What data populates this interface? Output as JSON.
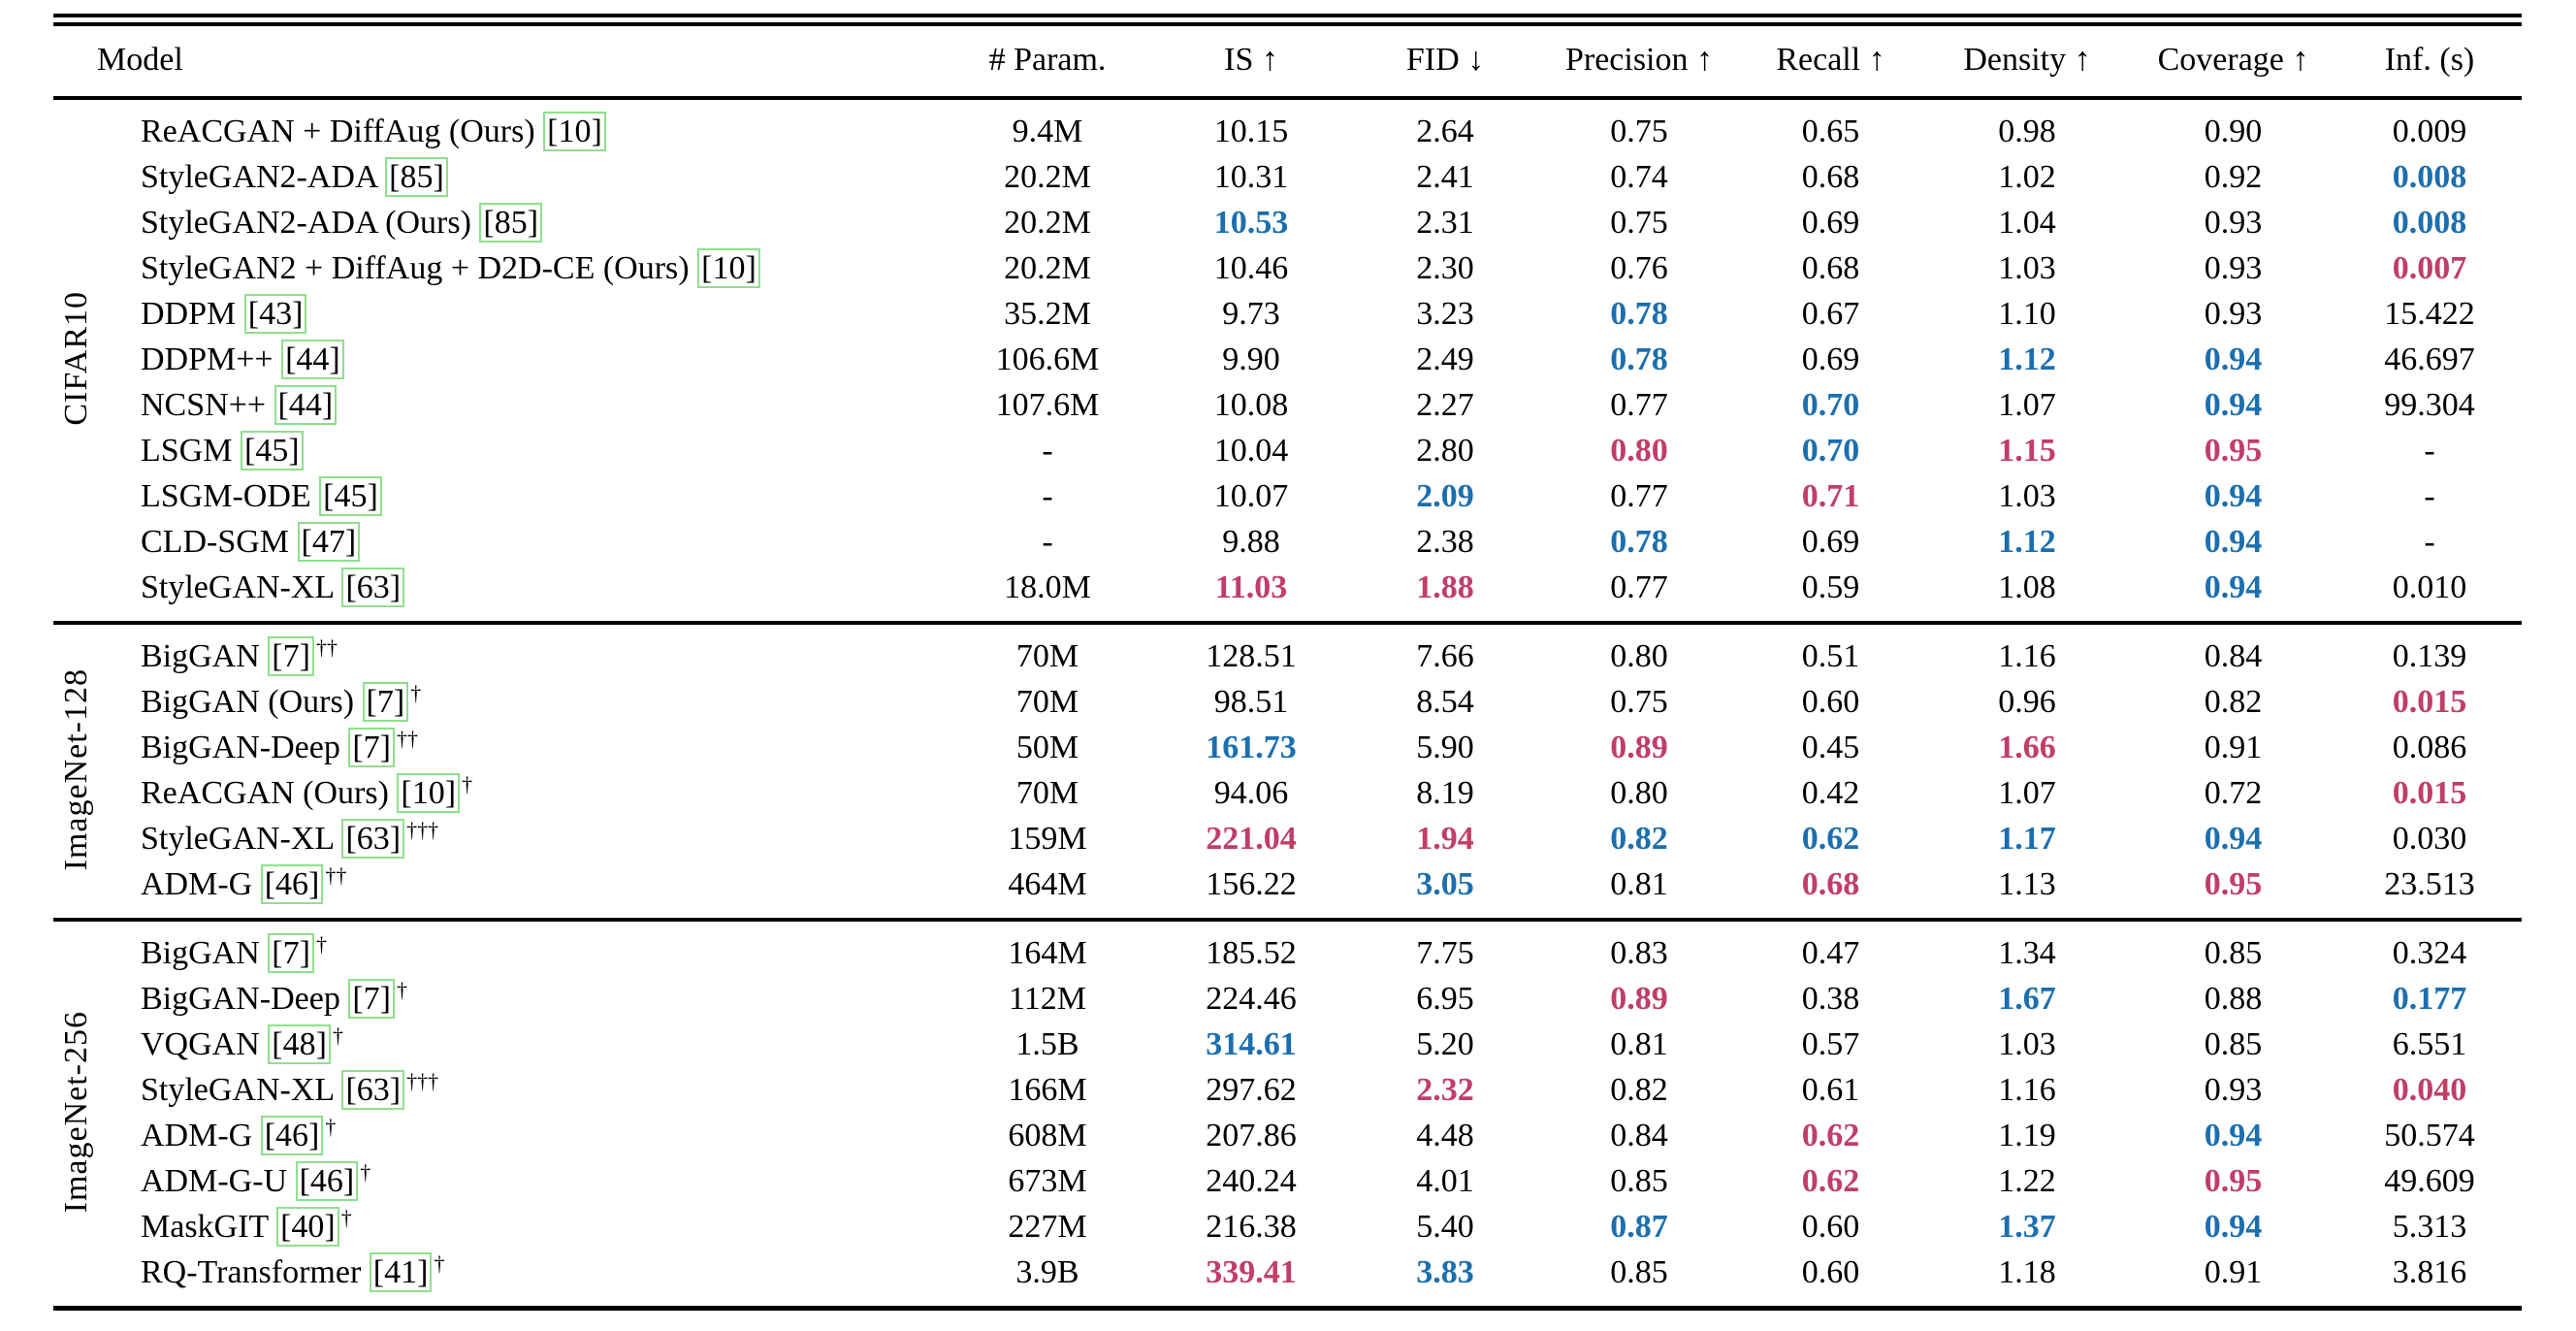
{
  "colors": {
    "best_red": "#c13e66",
    "runner_up_blue": "#1c6fae",
    "citation_box_green": "#8ee08e",
    "text": "#000000",
    "background": "#ffffff"
  },
  "header": {
    "columns": [
      "Model",
      "# Param.",
      "IS ↑",
      "FID ↓",
      "Precision ↑",
      "Recall ↑",
      "Density ↑",
      "Coverage ↑",
      "Inf. (s)"
    ]
  },
  "sections": [
    {
      "label": "CIFAR10",
      "rows": [
        {
          "name": "ReACGAN + DiffAug (Ours)",
          "cite": "[10]",
          "sup": "",
          "cells": [
            {
              "t": "9.4M"
            },
            {
              "t": "10.15"
            },
            {
              "t": "2.64"
            },
            {
              "t": "0.75"
            },
            {
              "t": "0.65"
            },
            {
              "t": "0.98"
            },
            {
              "t": "0.90"
            },
            {
              "t": "0.009"
            }
          ]
        },
        {
          "name": "StyleGAN2-ADA",
          "cite": "[85]",
          "sup": "",
          "cells": [
            {
              "t": "20.2M"
            },
            {
              "t": "10.31"
            },
            {
              "t": "2.41"
            },
            {
              "t": "0.74"
            },
            {
              "t": "0.68"
            },
            {
              "t": "1.02"
            },
            {
              "t": "0.92"
            },
            {
              "t": "0.008",
              "hl": "blue"
            }
          ]
        },
        {
          "name": "StyleGAN2-ADA (Ours)",
          "cite": "[85]",
          "sup": "",
          "cells": [
            {
              "t": "20.2M"
            },
            {
              "t": "10.53",
              "hl": "blue"
            },
            {
              "t": "2.31"
            },
            {
              "t": "0.75"
            },
            {
              "t": "0.69"
            },
            {
              "t": "1.04"
            },
            {
              "t": "0.93"
            },
            {
              "t": "0.008",
              "hl": "blue"
            }
          ]
        },
        {
          "name": "StyleGAN2 + DiffAug + D2D-CE (Ours)",
          "cite": "[10]",
          "sup": "",
          "cells": [
            {
              "t": "20.2M"
            },
            {
              "t": "10.46"
            },
            {
              "t": "2.30"
            },
            {
              "t": "0.76"
            },
            {
              "t": "0.68"
            },
            {
              "t": "1.03"
            },
            {
              "t": "0.93"
            },
            {
              "t": "0.007",
              "hl": "red"
            }
          ]
        },
        {
          "name": "DDPM",
          "cite": "[43]",
          "sup": "",
          "cells": [
            {
              "t": "35.2M"
            },
            {
              "t": "9.73"
            },
            {
              "t": "3.23"
            },
            {
              "t": "0.78",
              "hl": "blue"
            },
            {
              "t": "0.67"
            },
            {
              "t": "1.10"
            },
            {
              "t": "0.93"
            },
            {
              "t": "15.422"
            }
          ]
        },
        {
          "name": "DDPM++",
          "cite": "[44]",
          "sup": "",
          "cells": [
            {
              "t": "106.6M"
            },
            {
              "t": "9.90"
            },
            {
              "t": "2.49"
            },
            {
              "t": "0.78",
              "hl": "blue"
            },
            {
              "t": "0.69"
            },
            {
              "t": "1.12",
              "hl": "blue"
            },
            {
              "t": "0.94",
              "hl": "blue"
            },
            {
              "t": "46.697"
            }
          ]
        },
        {
          "name": "NCSN++",
          "cite": "[44]",
          "sup": "",
          "cells": [
            {
              "t": "107.6M"
            },
            {
              "t": "10.08"
            },
            {
              "t": "2.27"
            },
            {
              "t": "0.77"
            },
            {
              "t": "0.70",
              "hl": "blue"
            },
            {
              "t": "1.07"
            },
            {
              "t": "0.94",
              "hl": "blue"
            },
            {
              "t": "99.304"
            }
          ]
        },
        {
          "name": "LSGM",
          "cite": "[45]",
          "sup": "",
          "cells": [
            {
              "t": "-"
            },
            {
              "t": "10.04"
            },
            {
              "t": "2.80"
            },
            {
              "t": "0.80",
              "hl": "red"
            },
            {
              "t": "0.70",
              "hl": "blue"
            },
            {
              "t": "1.15",
              "hl": "red"
            },
            {
              "t": "0.95",
              "hl": "red"
            },
            {
              "t": "-"
            }
          ]
        },
        {
          "name": "LSGM-ODE",
          "cite": "[45]",
          "sup": "",
          "cells": [
            {
              "t": "-"
            },
            {
              "t": "10.07"
            },
            {
              "t": "2.09",
              "hl": "blue"
            },
            {
              "t": "0.77"
            },
            {
              "t": "0.71",
              "hl": "red"
            },
            {
              "t": "1.03"
            },
            {
              "t": "0.94",
              "hl": "blue"
            },
            {
              "t": "-"
            }
          ]
        },
        {
          "name": "CLD-SGM",
          "cite": "[47]",
          "sup": "",
          "cells": [
            {
              "t": "-"
            },
            {
              "t": "9.88"
            },
            {
              "t": "2.38"
            },
            {
              "t": "0.78",
              "hl": "blue"
            },
            {
              "t": "0.69"
            },
            {
              "t": "1.12",
              "hl": "blue"
            },
            {
              "t": "0.94",
              "hl": "blue"
            },
            {
              "t": "-"
            }
          ]
        },
        {
          "name": "StyleGAN-XL",
          "cite": "[63]",
          "sup": "",
          "cells": [
            {
              "t": "18.0M"
            },
            {
              "t": "11.03",
              "hl": "red"
            },
            {
              "t": "1.88",
              "hl": "red"
            },
            {
              "t": "0.77"
            },
            {
              "t": "0.59"
            },
            {
              "t": "1.08"
            },
            {
              "t": "0.94",
              "hl": "blue"
            },
            {
              "t": "0.010"
            }
          ]
        }
      ]
    },
    {
      "label": "ImageNet-128",
      "rows": [
        {
          "name": "BigGAN",
          "cite": "[7]",
          "sup": "††",
          "cells": [
            {
              "t": "70M"
            },
            {
              "t": "128.51"
            },
            {
              "t": "7.66"
            },
            {
              "t": "0.80"
            },
            {
              "t": "0.51"
            },
            {
              "t": "1.16"
            },
            {
              "t": "0.84"
            },
            {
              "t": "0.139"
            }
          ]
        },
        {
          "name": "BigGAN (Ours)",
          "cite": "[7]",
          "sup": "†",
          "cells": [
            {
              "t": "70M"
            },
            {
              "t": "98.51"
            },
            {
              "t": "8.54"
            },
            {
              "t": "0.75"
            },
            {
              "t": "0.60"
            },
            {
              "t": "0.96"
            },
            {
              "t": "0.82"
            },
            {
              "t": "0.015",
              "hl": "red"
            }
          ]
        },
        {
          "name": "BigGAN-Deep",
          "cite": "[7]",
          "sup": "††",
          "cells": [
            {
              "t": "50M"
            },
            {
              "t": "161.73",
              "hl": "blue"
            },
            {
              "t": "5.90"
            },
            {
              "t": "0.89",
              "hl": "red"
            },
            {
              "t": "0.45"
            },
            {
              "t": "1.66",
              "hl": "red"
            },
            {
              "t": "0.91"
            },
            {
              "t": "0.086"
            }
          ]
        },
        {
          "name": "ReACGAN (Ours)",
          "cite": "[10]",
          "sup": "†",
          "cells": [
            {
              "t": "70M"
            },
            {
              "t": "94.06"
            },
            {
              "t": "8.19"
            },
            {
              "t": "0.80"
            },
            {
              "t": "0.42"
            },
            {
              "t": "1.07"
            },
            {
              "t": "0.72"
            },
            {
              "t": "0.015",
              "hl": "red"
            }
          ]
        },
        {
          "name": "StyleGAN-XL",
          "cite": "[63]",
          "sup": "†††",
          "cells": [
            {
              "t": "159M"
            },
            {
              "t": "221.04",
              "hl": "red"
            },
            {
              "t": "1.94",
              "hl": "red"
            },
            {
              "t": "0.82",
              "hl": "blue"
            },
            {
              "t": "0.62",
              "hl": "blue"
            },
            {
              "t": "1.17",
              "hl": "blue"
            },
            {
              "t": "0.94",
              "hl": "blue"
            },
            {
              "t": "0.030"
            }
          ]
        },
        {
          "name": "ADM-G",
          "cite": "[46]",
          "sup": "††",
          "cells": [
            {
              "t": "464M"
            },
            {
              "t": "156.22"
            },
            {
              "t": "3.05",
              "hl": "blue"
            },
            {
              "t": "0.81"
            },
            {
              "t": "0.68",
              "hl": "red"
            },
            {
              "t": "1.13"
            },
            {
              "t": "0.95",
              "hl": "red"
            },
            {
              "t": "23.513"
            }
          ]
        }
      ]
    },
    {
      "label": "ImageNet-256",
      "rows": [
        {
          "name": "BigGAN",
          "cite": "[7]",
          "sup": "†",
          "cells": [
            {
              "t": "164M"
            },
            {
              "t": "185.52"
            },
            {
              "t": "7.75"
            },
            {
              "t": "0.83"
            },
            {
              "t": "0.47"
            },
            {
              "t": "1.34"
            },
            {
              "t": "0.85"
            },
            {
              "t": "0.324"
            }
          ]
        },
        {
          "name": "BigGAN-Deep",
          "cite": "[7]",
          "sup": "†",
          "cells": [
            {
              "t": "112M"
            },
            {
              "t": "224.46"
            },
            {
              "t": "6.95"
            },
            {
              "t": "0.89",
              "hl": "red"
            },
            {
              "t": "0.38"
            },
            {
              "t": "1.67",
              "hl": "blue"
            },
            {
              "t": "0.88"
            },
            {
              "t": "0.177",
              "hl": "blue"
            }
          ]
        },
        {
          "name": "VQGAN",
          "cite": "[48]",
          "sup": "†",
          "cells": [
            {
              "t": "1.5B"
            },
            {
              "t": "314.61",
              "hl": "blue"
            },
            {
              "t": "5.20"
            },
            {
              "t": "0.81"
            },
            {
              "t": "0.57"
            },
            {
              "t": "1.03"
            },
            {
              "t": "0.85"
            },
            {
              "t": "6.551"
            }
          ]
        },
        {
          "name": "StyleGAN-XL",
          "cite": "[63]",
          "sup": "†††",
          "cells": [
            {
              "t": "166M"
            },
            {
              "t": "297.62"
            },
            {
              "t": "2.32",
              "hl": "red"
            },
            {
              "t": "0.82"
            },
            {
              "t": "0.61"
            },
            {
              "t": "1.16"
            },
            {
              "t": "0.93"
            },
            {
              "t": "0.040",
              "hl": "red"
            }
          ]
        },
        {
          "name": "ADM-G",
          "cite": "[46]",
          "sup": "†",
          "cells": [
            {
              "t": "608M"
            },
            {
              "t": "207.86"
            },
            {
              "t": "4.48"
            },
            {
              "t": "0.84"
            },
            {
              "t": "0.62",
              "hl": "red"
            },
            {
              "t": "1.19"
            },
            {
              "t": "0.94",
              "hl": "blue"
            },
            {
              "t": "50.574"
            }
          ]
        },
        {
          "name": "ADM-G-U",
          "cite": "[46]",
          "sup": "†",
          "cells": [
            {
              "t": "673M"
            },
            {
              "t": "240.24"
            },
            {
              "t": "4.01"
            },
            {
              "t": "0.85"
            },
            {
              "t": "0.62",
              "hl": "red"
            },
            {
              "t": "1.22"
            },
            {
              "t": "0.95",
              "hl": "red"
            },
            {
              "t": "49.609"
            }
          ]
        },
        {
          "name": "MaskGIT",
          "cite": "[40]",
          "sup": "†",
          "cells": [
            {
              "t": "227M"
            },
            {
              "t": "216.38"
            },
            {
              "t": "5.40"
            },
            {
              "t": "0.87",
              "hl": "blue"
            },
            {
              "t": "0.60"
            },
            {
              "t": "1.37",
              "hl": "blue"
            },
            {
              "t": "0.94",
              "hl": "blue"
            },
            {
              "t": "5.313"
            }
          ]
        },
        {
          "name": "RQ-Transformer",
          "cite": "[41]",
          "sup": "†",
          "cells": [
            {
              "t": "3.9B"
            },
            {
              "t": "339.41",
              "hl": "red"
            },
            {
              "t": "3.83",
              "hl": "blue"
            },
            {
              "t": "0.85"
            },
            {
              "t": "0.60"
            },
            {
              "t": "1.18"
            },
            {
              "t": "0.91"
            },
            {
              "t": "3.816"
            }
          ]
        }
      ]
    }
  ]
}
